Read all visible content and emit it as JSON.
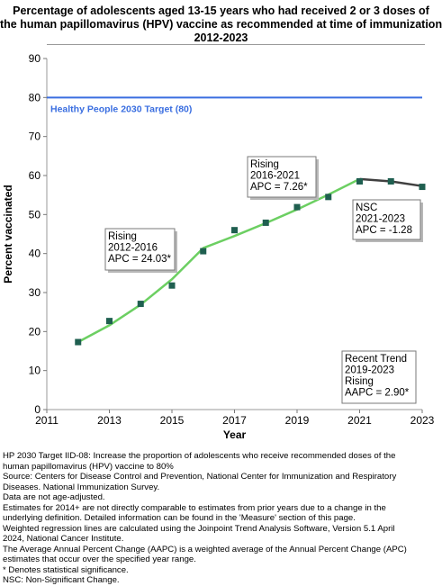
{
  "title_lines": [
    "Percentage of adolescents aged 13-15 years who had received 2 or 3 doses of",
    "the human papillomavirus (HPV) vaccine as recommended at time of immunization,",
    "2012-2023"
  ],
  "chart_data": {
    "type": "line",
    "xlabel": "Year",
    "ylabel": "Percent vaccinated",
    "xlim": [
      2011,
      2023
    ],
    "ylim": [
      0,
      90
    ],
    "x_ticks": [
      "2011",
      "2013",
      "2015",
      "2017",
      "2019",
      "2021",
      "2023"
    ],
    "y_ticks": [
      "0",
      "10",
      "20",
      "30",
      "40",
      "50",
      "60",
      "70",
      "80",
      "90"
    ],
    "grid": false,
    "series": [
      {
        "kind": "observed",
        "x": [
          2012,
          2013,
          2014,
          2015,
          2016,
          2017,
          2018,
          2019,
          2020,
          2021,
          2022,
          2023
        ],
        "y": [
          17.3,
          22.7,
          27.1,
          31.8,
          40.6,
          46.0,
          47.9,
          51.9,
          54.5,
          58.5,
          58.5,
          57.1
        ]
      },
      {
        "kind": "trend-rising",
        "x": [
          2012,
          2013,
          2014,
          2015,
          2016,
          2017,
          2018,
          2019,
          2020,
          2021
        ],
        "y": [
          17.3,
          21.6,
          26.9,
          33.4,
          41.4,
          44.5,
          47.8,
          51.3,
          55.1,
          59.1
        ]
      },
      {
        "kind": "trend-nsc",
        "x": [
          2021,
          2022,
          2023
        ],
        "y": [
          59.1,
          58.5,
          57.3
        ]
      }
    ],
    "target": {
      "value": 80,
      "label": "Healthy People 2030 Target (80)"
    },
    "annotations": [
      {
        "lines": [
          "Rising",
          "2012-2016",
          "APC = 24.03*"
        ]
      },
      {
        "lines": [
          "Rising",
          "2016-2021",
          "APC =  7.26*"
        ]
      },
      {
        "lines": [
          "NSC",
          "2021-2023",
          "APC = -1.28"
        ]
      },
      {
        "lines": [
          "Recent Trend",
          "2019-2023",
          "Rising",
          "AAPC =  2.90*"
        ]
      }
    ],
    "colors": {
      "rising": "#6ccf62",
      "nsc": "#404040",
      "marker": "#1f5f50",
      "target": "#3a6ee0"
    }
  },
  "notes": [
    "HP 2030 Target IID-08:  Increase the proportion of adolescents who receive recommended doses of the",
    "human papillomavirus (HPV) vaccine to 80%",
    "Source: Centers for Disease Control and Prevention, National Center for Immunization and Respiratory",
    "Diseases. National Immunization Survey.",
    "Data are not age-adjusted.",
    "Estimates for 2014+ are not directly comparable to estimates from prior years due to a change in the",
    "underlying definition. Detailed information can be found in the 'Measure' section of this page.",
    "Weighted regression lines are calculated using the Joinpoint Trend Analysis Software, Version 5.1 April",
    "2024, National Cancer Institute.",
    "The Average Annual Percent Change (AAPC) is a weighted average of the Annual Percent Change (APC)",
    "estimates that occur over the specified year range.",
    "* Denotes statistical significance.",
    "NSC: Non-Significant Change."
  ]
}
